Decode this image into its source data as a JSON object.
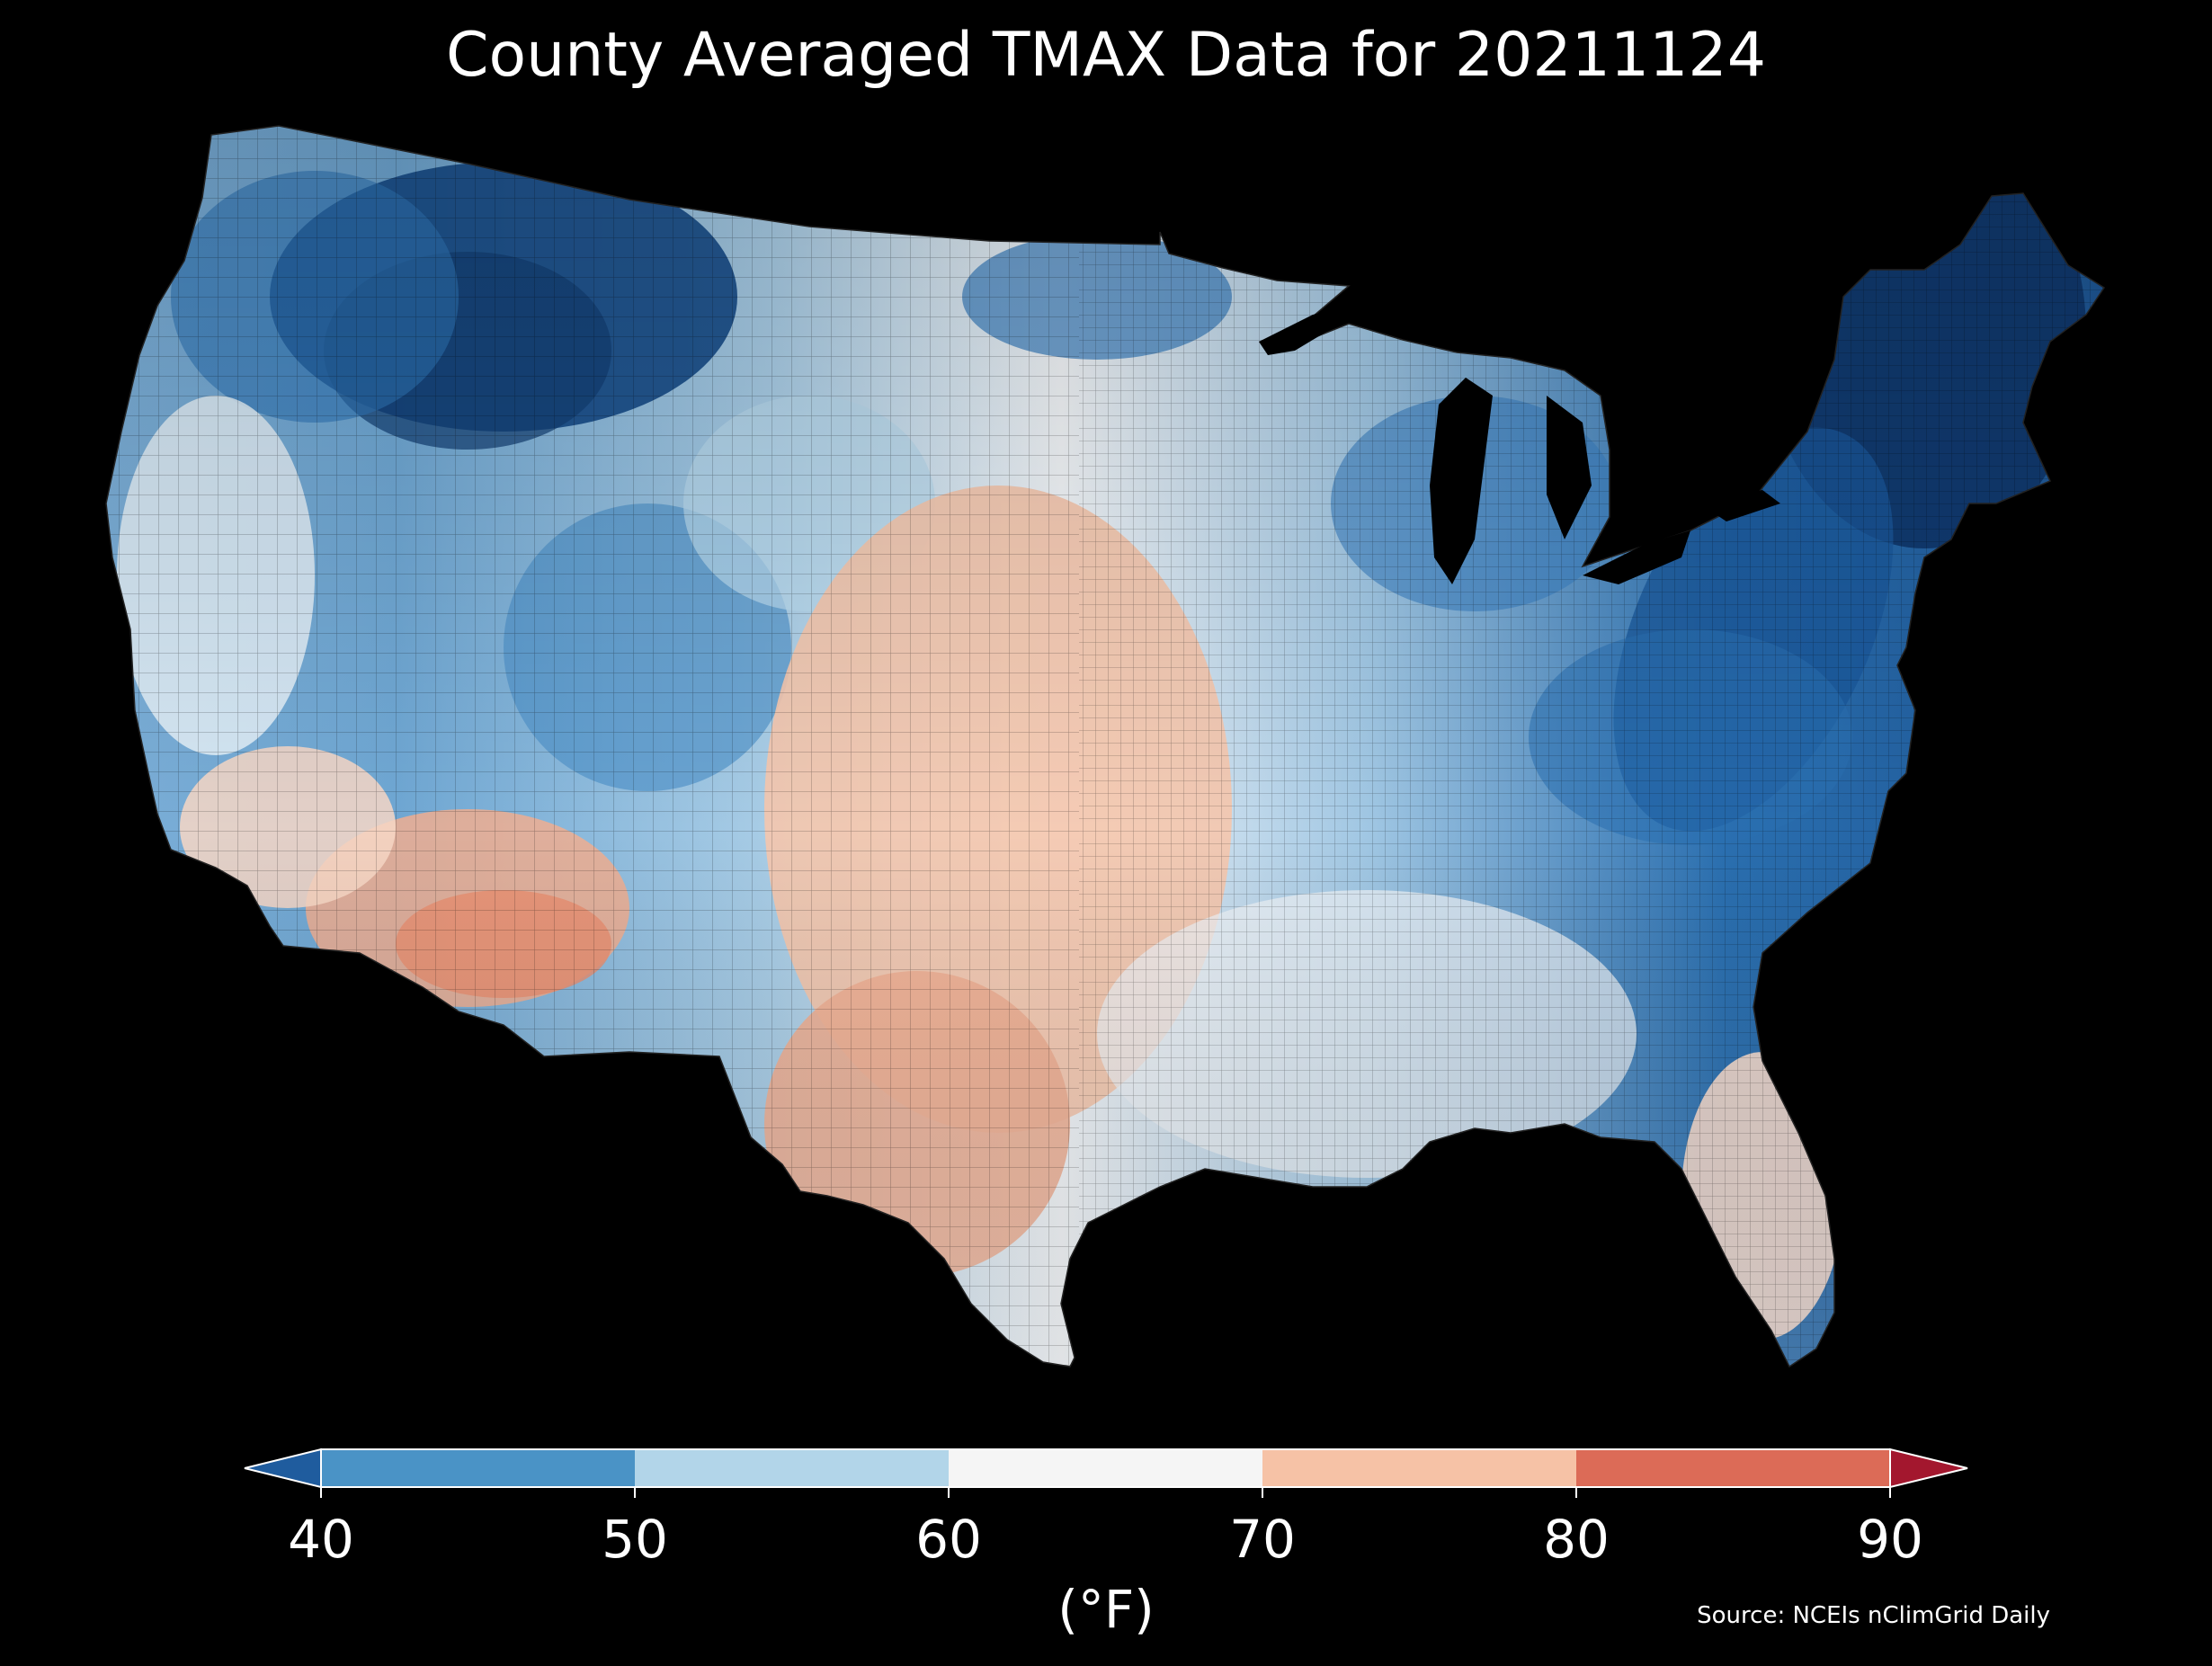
{
  "title": "County Averaged TMAX Data for 20211124",
  "colorbar": {
    "ticks": [
      "40",
      "50",
      "60",
      "70",
      "80",
      "90"
    ],
    "units": "(°F)",
    "bins": [
      {
        "range": "<40",
        "color": "#1f5c9e"
      },
      {
        "range": "40-50",
        "color": "#4a93c6"
      },
      {
        "range": "50-60",
        "color": "#b2d5e9"
      },
      {
        "range": "60-70",
        "color": "#f5f5f5"
      },
      {
        "range": "70-80",
        "color": "#f6c2a6"
      },
      {
        "range": "80-90",
        "color": "#dc6b57"
      },
      {
        "range": ">90",
        "color": "#a3172e"
      }
    ]
  },
  "source": "Source: NCEIs nClimGrid Daily",
  "map": {
    "region": "Contiguous United States counties",
    "regional_colors": {
      "northern_rockies": "#154a87",
      "northeast": "#123d73",
      "appalachians": "#2065a8",
      "great_lakes": "#2e75b6",
      "upper_midwest": "#8fbedf",
      "great_basin": "#7cb2d8",
      "pacific_coast": "#deedf6",
      "southern_plains": "#f4c3a8",
      "desert_southwest": "#ee9a7a",
      "gulf_coast": "#f3f5f7",
      "florida": "#f7d9cb"
    },
    "background": "#000000"
  }
}
